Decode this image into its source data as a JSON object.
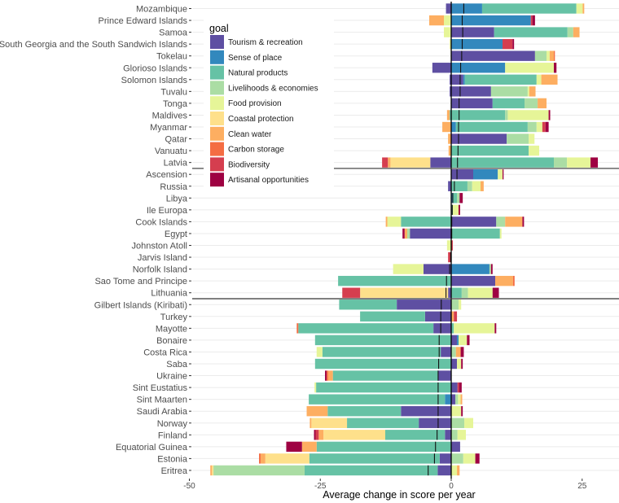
{
  "chart_data": {
    "type": "bar",
    "orientation": "horizontal",
    "stacked": "diverging",
    "title": "",
    "xlabel": "Average change in score per year",
    "ylabel": "",
    "xlim": [
      -51,
      32
    ],
    "xticks": [
      -50,
      -25,
      0,
      25
    ],
    "xtick_labels": [
      "-50",
      "-25",
      "0",
      "25"
    ],
    "grid": true,
    "legend": {
      "title": "goal",
      "placement": "top-left-inside",
      "entries": [
        {
          "key": "tourism",
          "label": "Tourism & recreation",
          "color": "#5E4FA2"
        },
        {
          "key": "sense",
          "label": "Sense of place",
          "color": "#3288BD"
        },
        {
          "key": "natural",
          "label": "Natural products",
          "color": "#66C2A5"
        },
        {
          "key": "livelihoods",
          "label": "Livelihoods & economies",
          "color": "#ABDDA4"
        },
        {
          "key": "food",
          "label": "Food provision",
          "color": "#E6F598"
        },
        {
          "key": "coastal",
          "label": "Coastal protection",
          "color": "#FEE08B"
        },
        {
          "key": "water",
          "label": "Clean water",
          "color": "#FDAE61"
        },
        {
          "key": "carbon",
          "label": "Carbon storage",
          "color": "#F46D43"
        },
        {
          "key": "biodiv",
          "label": "Biodiversity",
          "color": "#D53E4F"
        },
        {
          "key": "artisanal",
          "label": "Artisanal opportunities",
          "color": "#9E0142"
        }
      ]
    },
    "group_separators_after": [
      "Latvia",
      "Lithuania"
    ],
    "rows": [
      {
        "name": "Mozambique",
        "net": 2.4,
        "neg": {
          "tourism": -1.0
        },
        "pos": {
          "sense": 5.9,
          "natural": 18.0,
          "food": 1.2,
          "water": 0.3
        }
      },
      {
        "name": "Prince Edward Islands",
        "net": 2.1,
        "neg": {
          "food": -1.4,
          "water": -2.8
        },
        "pos": {
          "sense": 15.2,
          "biodiv": 0.3,
          "artisanal": 0.5
        }
      },
      {
        "name": "Samoa",
        "net": 2.2,
        "neg": {
          "food": -1.4
        },
        "pos": {
          "tourism": 8.2,
          "natural": 14.0,
          "livelihoods": 1.1,
          "water": 1.2
        }
      },
      {
        "name": "South Georgia and the South Sandwich Islands",
        "net": 2.1,
        "neg": {
          "food": -0.3
        },
        "pos": {
          "sense": 9.8,
          "biodiv": 1.9,
          "artisanal": 0.3
        }
      },
      {
        "name": "Tokelau",
        "net": 2.0,
        "neg": {},
        "pos": {
          "tourism": 16.0,
          "livelihoods": 2.2,
          "food": 0.6,
          "water": 0.8,
          "carbon": 0.2
        }
      },
      {
        "name": "Glorioso Islands",
        "net": 1.8,
        "neg": {
          "tourism": -3.6
        },
        "pos": {
          "sense": 10.3,
          "food": 9.3,
          "artisanal": 0.5
        }
      },
      {
        "name": "Solomon Islands",
        "net": 1.7,
        "neg": {
          "tourism": -0.3
        },
        "pos": {
          "tourism": 2.3,
          "sense": 0.3,
          "natural": 13.7,
          "food": 0.9,
          "water": 3.1
        }
      },
      {
        "name": "Tuvalu",
        "net": 1.7,
        "neg": {
          "tourism": -0.3
        },
        "pos": {
          "tourism": 7.6,
          "livelihoods": 7.0,
          "food": 0.3,
          "water": 1.2
        }
      },
      {
        "name": "Tonga",
        "net": 1.5,
        "neg": {},
        "pos": {
          "tourism": 7.9,
          "natural": 6.1,
          "livelihoods": 2.5,
          "water": 1.7
        }
      },
      {
        "name": "Maldives",
        "net": 1.5,
        "neg": {
          "natural": -0.3,
          "water": -0.5
        },
        "pos": {
          "natural": 10.3,
          "livelihoods": 0.5,
          "food": 7.8,
          "artisanal": 0.3
        }
      },
      {
        "name": "Myanmar",
        "net": 1.4,
        "neg": {
          "water": -1.7
        },
        "pos": {
          "sense": 0.9,
          "natural": 13.7,
          "livelihoods": 1.7,
          "food": 1.1,
          "biodiv": 0.6,
          "artisanal": 0.6
        }
      },
      {
        "name": "Qatar",
        "net": 1.4,
        "neg": {
          "water": -0.6
        },
        "pos": {
          "tourism": 10.6,
          "livelihoods": 4.2,
          "food": 1.1
        }
      },
      {
        "name": "Vanuatu",
        "net": 1.3,
        "neg": {
          "water": -0.5
        },
        "pos": {
          "natural": 14.8,
          "food": 2.0
        }
      },
      {
        "name": "Latvia",
        "net": 1.2,
        "neg": {
          "tourism": -4.0,
          "coastal": -7.6,
          "water": -0.5,
          "biodiv": -1.1
        },
        "pos": {
          "natural": 19.6,
          "livelihoods": 2.5,
          "food": 4.5,
          "artisanal": 1.4
        }
      },
      {
        "name": "Ascension",
        "net": 1.1,
        "neg": {},
        "pos": {
          "tourism": 4.2,
          "sense": 4.7,
          "food": 0.9,
          "artisanal": 0.2
        }
      },
      {
        "name": "Russia",
        "net": 0.6,
        "neg": {
          "tourism": -0.6
        },
        "pos": {
          "natural": 3.1,
          "livelihoods": 0.9,
          "food": 1.6,
          "water": 0.6
        }
      },
      {
        "name": "Libya",
        "net": 0.3,
        "neg": {},
        "pos": {
          "sense": 0.3,
          "natural": 0.8,
          "livelihoods": 0.5,
          "artisanal": 0.6
        }
      },
      {
        "name": "Ile Europa",
        "net": 0.2,
        "neg": {},
        "pos": {
          "natural": 0.3,
          "food": 1.1,
          "artisanal": 0.3
        }
      },
      {
        "name": "Cook Islands",
        "net": 0.1,
        "neg": {
          "natural": -9.6,
          "food": -2.6,
          "water": -0.3
        },
        "pos": {
          "tourism": 8.6,
          "livelihoods": 1.7,
          "water": 3.3,
          "artisanal": 0.3
        }
      },
      {
        "name": "Egypt",
        "net": 0.1,
        "neg": {
          "tourism": -7.9,
          "livelihoods": -0.5,
          "water": -0.5,
          "artisanal": -0.4
        },
        "pos": {
          "natural": 9.3,
          "food": 0.3
        }
      },
      {
        "name": "Johnston Atoll",
        "net": 0.0,
        "neg": {
          "food": -0.8
        },
        "pos": {
          "biodiv": 0.3
        }
      },
      {
        "name": "Jarvis Island",
        "net": -0.1,
        "neg": {
          "biodiv": -0.6
        },
        "pos": {}
      },
      {
        "name": "Norfolk Island",
        "net": -0.3,
        "neg": {
          "tourism": -5.3,
          "food": -5.8
        },
        "pos": {
          "sense": 7.3,
          "livelihoods": 0.3,
          "artisanal": 0.3
        }
      },
      {
        "name": "Sao Tome and Principe",
        "net": -0.9,
        "neg": {
          "natural": -21.6
        },
        "pos": {
          "tourism": 8.4,
          "water": 3.4,
          "carbon": 0.3
        }
      },
      {
        "name": "Lithuania",
        "net": -1.0,
        "neg": {
          "tourism": -0.6,
          "coastal": -16.8,
          "biodiv": -3.4
        },
        "pos": {
          "natural": 2.0,
          "livelihoods": 1.2,
          "food": 4.7,
          "artisanal": 1.2
        }
      },
      {
        "name": "Gilbert Islands (Kiribati)",
        "net": -1.9,
        "neg": {
          "tourism": -10.4,
          "natural": -11.0
        },
        "pos": {
          "livelihoods": 1.4,
          "food": 0.5
        }
      },
      {
        "name": "Turkey",
        "net": -2.0,
        "neg": {
          "tourism": -5.0,
          "natural": -12.4
        },
        "pos": {
          "water": 0.5,
          "biodiv": 0.6
        }
      },
      {
        "name": "Mayotte",
        "net": -2.0,
        "neg": {
          "tourism": -3.4,
          "natural": -25.8,
          "carbon": -0.3
        },
        "pos": {
          "natural": 0.5,
          "food": 7.8,
          "artisanal": 0.3
        }
      },
      {
        "name": "Bonaire",
        "net": -2.3,
        "neg": {
          "natural": -26.0
        },
        "pos": {
          "tourism": 1.1,
          "sense": 0.3,
          "food": 1.6,
          "artisanal": 0.5
        }
      },
      {
        "name": "Costa Rica",
        "net": -2.3,
        "neg": {
          "tourism": -2.0,
          "natural": -22.6,
          "food": -1.1
        },
        "pos": {
          "livelihoods": 0.9,
          "water": 0.9,
          "artisanal": 0.6
        }
      },
      {
        "name": "Saba",
        "net": -2.4,
        "neg": {
          "natural": -26.0
        },
        "pos": {
          "tourism": 1.1,
          "food": 0.8,
          "artisanal": 0.3
        }
      },
      {
        "name": "Ukraine",
        "net": -2.5,
        "neg": {
          "tourism": -2.5,
          "natural": -20.1,
          "water": -0.9,
          "carbon": -0.3,
          "artisanal": -0.3
        },
        "pos": {}
      },
      {
        "name": "Sint Eustatius",
        "net": -2.5,
        "neg": {
          "natural": -25.8,
          "food": -0.3
        },
        "pos": {
          "tourism": 1.2,
          "biodiv": 0.3,
          "artisanal": 0.5
        }
      },
      {
        "name": "Sint Maarten",
        "net": -2.5,
        "neg": {
          "sense": -1.2,
          "natural": -26.0
        },
        "pos": {
          "tourism": 0.8,
          "livelihoods": 0.5,
          "food": 0.5,
          "water": 0.3
        }
      },
      {
        "name": "Saudi Arabia",
        "net": -2.5,
        "neg": {
          "tourism": -9.6,
          "natural": -14.0,
          "water": -4.0
        },
        "pos": {
          "food": 1.9,
          "artisanal": 0.3
        }
      },
      {
        "name": "Norway",
        "net": -2.5,
        "neg": {
          "tourism": -6.2,
          "natural": -13.7,
          "coastal": -6.8,
          "water": -0.3
        },
        "pos": {
          "livelihoods": 2.5,
          "food": 1.7
        }
      },
      {
        "name": "Finland",
        "net": -2.7,
        "neg": {
          "tourism": -1.2,
          "natural": -11.4,
          "coastal": -11.8,
          "water": -0.9,
          "biodiv": -0.6,
          "artisanal": -0.3
        },
        "pos": {
          "livelihoods": 1.2,
          "food": 1.6
        }
      },
      {
        "name": "Equatorial Guinea",
        "net": -3.0,
        "neg": {
          "natural": -25.7,
          "water": -2.8,
          "artisanal": -3.0
        },
        "pos": {
          "tourism": 1.7
        }
      },
      {
        "name": "Estonia",
        "net": -3.2,
        "neg": {
          "tourism": -2.2,
          "natural": -24.9,
          "coastal": -8.4,
          "water": -0.9,
          "carbon": -0.3
        },
        "pos": {
          "livelihoods": 2.3,
          "food": 2.3,
          "artisanal": 0.8
        }
      },
      {
        "name": "Eritrea",
        "net": -4.4,
        "neg": {
          "tourism": -2.6,
          "natural": -25.4,
          "livelihoods": -17.4,
          "coastal": -0.3,
          "water": -0.3
        },
        "pos": {
          "food": 1.1,
          "water": 0.5
        }
      }
    ]
  }
}
